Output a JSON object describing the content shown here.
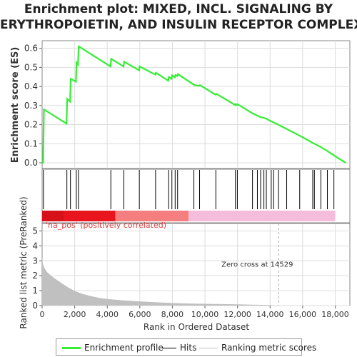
{
  "title_line1": "Enrichment plot: MIXED, INCL. SIGNALING BY",
  "title_line2": "ERYTHROPOIETIN, AND INSULIN RECEPTOR COMPLEX",
  "colors": {
    "es_line": "#33ee33",
    "hits": "#000000",
    "metric_fill": "#c0c0c0",
    "pos_label": "#e04040",
    "zero_line": "#aaaaaa",
    "heat_high": "#e8141e",
    "heat_mid": "#f57e7e",
    "heat_low": "#f6bcdc"
  },
  "legend": {
    "enrichment_profile": "Enrichment profile",
    "hits": "Hits",
    "ranking_metric": "Ranking metric scores"
  },
  "chart_data": [
    {
      "type": "line",
      "panel": "enrichment",
      "ylabel": "Enrichment score (ES)",
      "ylim": [
        -0.03,
        0.64
      ],
      "yticks": [
        0.0,
        0.1,
        0.2,
        0.3,
        0.4,
        0.5,
        0.6
      ],
      "ytick_labels": [
        "0.0",
        "0.1",
        "0.2",
        "0.3",
        "0.4",
        "0.5",
        "0.6"
      ],
      "xlim": [
        0,
        18900
      ],
      "grid": true,
      "series": [
        {
          "points": [
            [
              0,
              0.0
            ],
            [
              60,
              0.0
            ],
            [
              110,
              0.28
            ],
            [
              1500,
              0.205
            ],
            [
              1540,
              0.335
            ],
            [
              1720,
              0.32
            ],
            [
              1760,
              0.44
            ],
            [
              2080,
              0.425
            ],
            [
              2120,
              0.525
            ],
            [
              2200,
              0.515
            ],
            [
              2250,
              0.61
            ],
            [
              4200,
              0.505
            ],
            [
              4240,
              0.545
            ],
            [
              5000,
              0.505
            ],
            [
              5040,
              0.53
            ],
            [
              5950,
              0.485
            ],
            [
              5990,
              0.505
            ],
            [
              6950,
              0.462
            ],
            [
              6990,
              0.472
            ],
            [
              7750,
              0.43
            ],
            [
              7790,
              0.45
            ],
            [
              7950,
              0.44
            ],
            [
              7990,
              0.458
            ],
            [
              8150,
              0.448
            ],
            [
              8190,
              0.46
            ],
            [
              8300,
              0.455
            ],
            [
              8340,
              0.465
            ],
            [
              9300,
              0.41
            ],
            [
              9340,
              0.408
            ],
            [
              9650,
              0.403
            ],
            [
              9690,
              0.407
            ],
            [
              10650,
              0.357
            ],
            [
              10690,
              0.362
            ],
            [
              11850,
              0.303
            ],
            [
              11890,
              0.308
            ],
            [
              11970,
              0.303
            ],
            [
              12010,
              0.307
            ],
            [
              12900,
              0.26
            ],
            [
              13200,
              0.248
            ],
            [
              13400,
              0.24
            ],
            [
              13600,
              0.236
            ],
            [
              13750,
              0.232
            ],
            [
              14050,
              0.218
            ],
            [
              14200,
              0.213
            ],
            [
              14500,
              0.2
            ],
            [
              15000,
              0.178
            ],
            [
              15800,
              0.143
            ],
            [
              16600,
              0.105
            ],
            [
              17100,
              0.083
            ],
            [
              17500,
              0.063
            ],
            [
              17900,
              0.04
            ],
            [
              18300,
              0.018
            ],
            [
              18650,
              0.0
            ]
          ]
        }
      ]
    },
    {
      "type": "hits",
      "panel": "hits",
      "hit_ranks": [
        80,
        1520,
        1740,
        2100,
        2230,
        4220,
        5020,
        5970,
        6970,
        7770,
        7970,
        8170,
        8320,
        9320,
        9670,
        10670,
        11870,
        11990,
        12920,
        13220,
        13420,
        13620,
        13770,
        14070,
        14220,
        14520,
        15020,
        15820,
        16620,
        16720,
        17120,
        17520,
        17920
      ],
      "heatmap_bands": [
        {
          "from": 0,
          "to": 1300,
          "level": "high"
        },
        {
          "from": 1300,
          "to": 4500,
          "level": "high"
        },
        {
          "from": 4500,
          "to": 9000,
          "level": "mid"
        },
        {
          "from": 9000,
          "to": 18000,
          "level": "low"
        }
      ]
    },
    {
      "type": "area",
      "panel": "ranked_metric",
      "ylabel": "Ranked list metric (PreRanked)",
      "xlabel": "Rank in Ordered Dataset",
      "ylim": [
        0,
        5.5
      ],
      "yticks": [
        0,
        1,
        2,
        3,
        4,
        5
      ],
      "ytick_labels": [
        "0",
        "1",
        "2",
        "3",
        "4",
        "5"
      ],
      "xlim": [
        0,
        18900
      ],
      "xticks": [
        0,
        2000,
        4000,
        6000,
        8000,
        10000,
        12000,
        14000,
        16000,
        18000
      ],
      "xtick_labels": [
        "0",
        "2,000",
        "4,000",
        "6,000",
        "8,000",
        "10,000",
        "12,000",
        "14,000",
        "16,000",
        "18,000"
      ],
      "positive_label": "'na_pos' (positively correlated)",
      "zero_cross_label": "Zero cross at 14529",
      "zero_cross": 14529,
      "x": [
        0,
        50,
        150,
        300,
        500,
        800,
        1200,
        1600,
        2000,
        2500,
        3000,
        3500,
        4000,
        5000,
        6000,
        7000,
        8000,
        9000,
        10000,
        11000,
        12000,
        13000,
        14000,
        14529,
        15000,
        18000
      ],
      "values": [
        3.2,
        2.8,
        2.5,
        2.25,
        2.05,
        1.8,
        1.5,
        1.22,
        0.98,
        0.78,
        0.63,
        0.52,
        0.44,
        0.35,
        0.28,
        0.22,
        0.17,
        0.14,
        0.12,
        0.1,
        0.08,
        0.06,
        0.04,
        0.0,
        0.0,
        0.0
      ]
    }
  ]
}
